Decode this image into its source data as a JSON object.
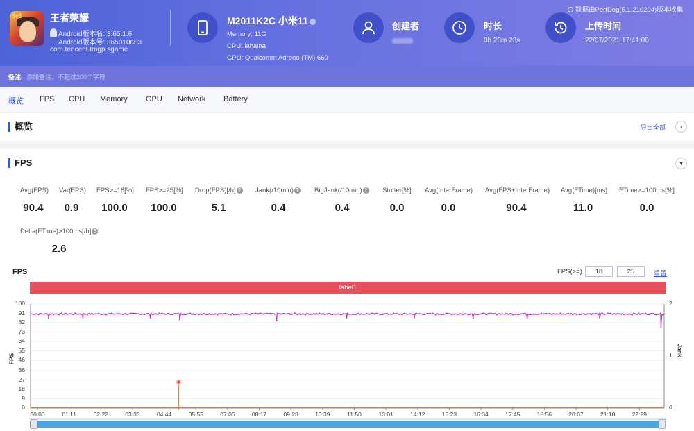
{
  "app": {
    "name": "王者荣耀",
    "android_version_name": "Android版本名: 3.65.1.6",
    "android_version_code": "Android版本号: 365010603",
    "package": "com.tencent.tmgp.sgame",
    "icon_badge": "5v5"
  },
  "device": {
    "model": "M2011K2C 小米11",
    "memory": "Memory: 11G",
    "cpu": "CPU: lahaina",
    "gpu": "GPU: Qualcomm Adreno (TM) 660"
  },
  "creator": {
    "label": "创建者"
  },
  "duration": {
    "label": "时长",
    "value": "0h 23m 23s"
  },
  "upload": {
    "label": "上传时间",
    "value": "22/07/2021 17:41:00"
  },
  "source_note": "数据由PerfDog(5.1.210204)版本收集",
  "note": {
    "label": "备注:",
    "placeholder": "添加备注，不超过200个字符"
  },
  "tabs": [
    "概览",
    "FPS",
    "CPU",
    "Memory",
    "GPU",
    "Network",
    "Battery"
  ],
  "overview": {
    "title": "概览",
    "export": "导出全部",
    "collapse_glyph": "‹"
  },
  "fps_panel": {
    "title": "FPS",
    "collapse_glyph": "▾",
    "metrics": [
      {
        "label": "Avg(FPS)",
        "value": "90.4",
        "help": false
      },
      {
        "label": "Var(FPS)",
        "value": "0.9",
        "help": false
      },
      {
        "label": "FPS>=18[%]",
        "value": "100.0",
        "help": false
      },
      {
        "label": "FPS>=25[%]",
        "value": "100.0",
        "help": false
      },
      {
        "label": "Drop(FPS)[/h]",
        "value": "5.1",
        "help": true
      },
      {
        "label": "Jank(/10min)",
        "value": "0.4",
        "help": true
      },
      {
        "label": "BigJank(/10min)",
        "value": "0.4",
        "help": true
      },
      {
        "label": "Stutter[%]",
        "value": "0.0",
        "help": false
      },
      {
        "label": "Avg(InterFrame)",
        "value": "0.0",
        "help": false
      },
      {
        "label": "Avg(FPS+InterFrame)",
        "value": "90.4",
        "help": false
      },
      {
        "label": "Avg(FTime)[ms]",
        "value": "11.0",
        "help": false
      },
      {
        "label": "FTime>=100ms[%]",
        "value": "0.0",
        "help": false
      },
      {
        "label": "Delta(FTime)>100ms[/h]",
        "value": "2.6",
        "help": true
      }
    ]
  },
  "chart_controls": {
    "title": "FPS",
    "threshold_label": "FPS(>=)",
    "threshold_low": "18",
    "threshold_high": "25",
    "reset_label": "重置",
    "band_label": "label1",
    "help_glyph": "?"
  },
  "colors": {
    "fps_line": "#c040c0",
    "jank_line": "#e08a2e",
    "bigjank_line": "#5b7fd6",
    "band": "#e8505f",
    "accent": "#3a56d4"
  },
  "chart_data": {
    "type": "line",
    "title": "FPS",
    "xlabel": "",
    "ylabel": "FPS",
    "y2label": "Jank",
    "ylim": [
      0,
      100
    ],
    "y2lim": [
      0,
      2
    ],
    "yticks": [
      "0",
      "9",
      "18",
      "27",
      "36",
      "46",
      "55",
      "64",
      "73",
      "82",
      "91",
      "100"
    ],
    "y2ticks": [
      "0",
      "1",
      "2"
    ],
    "x_categories": [
      "00:00",
      "01:11",
      "02:22",
      "03:33",
      "04:44",
      "05:55",
      "07:06",
      "08:17",
      "09:28",
      "10:39",
      "11:50",
      "13:01",
      "14:12",
      "15:23",
      "16:34",
      "17:45",
      "18:56",
      "20:07",
      "21:18",
      "22:29"
    ],
    "x_range_seconds": [
      0,
      1403
    ],
    "series": [
      {
        "name": "FPS",
        "axis": "left",
        "baseline": 90.4,
        "dips": [
          [
            40,
            86
          ],
          [
            116,
            87
          ],
          [
            265,
            86
          ],
          [
            330,
            85
          ],
          [
            545,
            84
          ],
          [
            700,
            86
          ],
          [
            850,
            87
          ],
          [
            980,
            86
          ],
          [
            1100,
            86
          ],
          [
            1260,
            87
          ],
          [
            1396,
            78
          ]
        ]
      },
      {
        "name": "Jank",
        "axis": "right",
        "events": [
          [
            328,
            0.5
          ]
        ]
      },
      {
        "name": "BigJank",
        "axis": "right",
        "events": [
          [
            328,
            0.5
          ]
        ]
      }
    ]
  }
}
